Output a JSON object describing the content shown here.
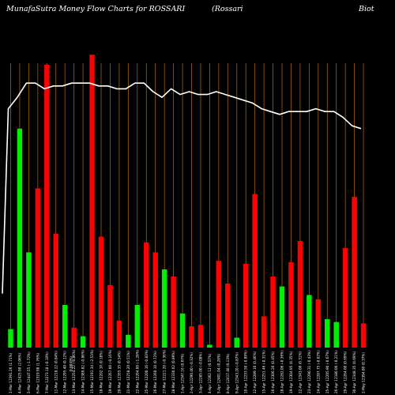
{
  "chart_data": {
    "type": "bar",
    "title": "MunafaSutra  Money Flow  Charts for ROSSARI",
    "subtitle_parts": [
      "(Rossari",
      "Biot"
    ],
    "colors": {
      "background": "#000000",
      "up": "#00ee00",
      "down": "#ff0000",
      "grid": "#a06010",
      "line": "#ffffff"
    },
    "grid": true,
    "ylim": [
      0,
      100
    ],
    "bars": [
      {
        "value": 6.5,
        "color": "up",
        "label": "1-Mar 12391.26 (1.71%)"
      },
      {
        "value": 77,
        "color": "up",
        "label": "4-Mar 12425.90 (2.06%)"
      },
      {
        "value": 33.5,
        "color": "up",
        "label": "5-Mar 12447.55 (-1.72%)"
      },
      {
        "value": 56,
        "color": "down",
        "label": "6-Mar 12319.98 (1.76%)"
      },
      {
        "value": 99.5,
        "color": "down",
        "label": "7-Mar 12273.18 (-0.10%)"
      },
      {
        "value": 40,
        "color": "down",
        "label": "11-Mar 12218.22 (0.84%)"
      },
      {
        "value": 15,
        "color": "up",
        "label": "12-Mar 12295.40 (0.12%)"
      },
      {
        "value": 7,
        "color": "down",
        "label": "13-Mar 12254.22 (-0.86%)"
      },
      {
        "value": 4,
        "color": "up",
        "label": "14-Mar 12389.82 (-0.86%)"
      },
      {
        "value": 103,
        "color": "down",
        "label": "15-Mar 12191.34 (-2.53%)"
      },
      {
        "value": 39,
        "color": "down",
        "label": "18-Mar 12202.10 (0.18%)"
      },
      {
        "value": 22,
        "color": "down",
        "label": "19-Mar 12267.00 (-0.16%)"
      },
      {
        "value": 9.5,
        "color": "down",
        "label": "20-Mar 12355.35 (0.54%)"
      },
      {
        "value": 4.5,
        "color": "up",
        "label": "21-Mar 12258.20 (0.51%)"
      },
      {
        "value": 15,
        "color": "up",
        "label": "22-Mar 12204.00 (-1.28%)"
      },
      {
        "value": 37,
        "color": "down",
        "label": "25-Mar 12200.16 (-0.83%)"
      },
      {
        "value": 33.5,
        "color": "down",
        "label": "26-Mar 12260.10 (0.72%)"
      },
      {
        "value": 27.5,
        "color": "up",
        "label": "27-Mar 12221.20 (-0.36%)"
      },
      {
        "value": 25,
        "color": "down",
        "label": "28-Mar 12330.62 (0.89%)"
      },
      {
        "value": 12,
        "color": "up",
        "label": "1-Apr 12347.16 (0.67%)"
      },
      {
        "value": 7.5,
        "color": "down",
        "label": "2-Apr 12290.40 (-0.32%)"
      },
      {
        "value": 8,
        "color": "down",
        "label": "3-Apr 12285.00 (-0.08%)"
      },
      {
        "value": 1,
        "color": "up",
        "label": "4-Apr 12362.12 (0.57%)"
      },
      {
        "value": 30.5,
        "color": "down",
        "label": "5-Apr 12401.04 (0.28%)"
      },
      {
        "value": 22.5,
        "color": "down",
        "label": "8-Apr 12417.40 (0.13%)"
      },
      {
        "value": 3.5,
        "color": "up",
        "label": "9-Apr 12343.20 (-0.87%)"
      },
      {
        "value": 29.5,
        "color": "down",
        "label": "10-Apr 12233.50 (-0.89%)"
      },
      {
        "value": 54,
        "color": "down",
        "label": "12-Apr 12289.10 (0.46%)"
      },
      {
        "value": 11,
        "color": "down",
        "label": "15-Apr 12251.46 (-0.31%)"
      },
      {
        "value": 25,
        "color": "down",
        "label": "16-Apr 12306.20 (0.45%)"
      },
      {
        "value": 21.5,
        "color": "up",
        "label": "18-Apr 12262.06 (-0.36%)"
      },
      {
        "value": 30,
        "color": "down",
        "label": "19-Apr 12304.95 (0.35%)"
      },
      {
        "value": 37.5,
        "color": "down",
        "label": "22-Apr 12343.00 (0.31%)"
      },
      {
        "value": 18.5,
        "color": "up",
        "label": "23-Apr 12290.31 (-0.43%)"
      },
      {
        "value": 17,
        "color": "down",
        "label": "24-Apr 12287.75 (-0.02%)"
      },
      {
        "value": 10,
        "color": "up",
        "label": "25-Apr 12205.90 (-0.67%)"
      },
      {
        "value": 9,
        "color": "up",
        "label": "26-Apr 12180.00 (-0.21%)"
      },
      {
        "value": 35,
        "color": "down",
        "label": "29-Apr 12264.00 (0.69%)"
      },
      {
        "value": 53,
        "color": "down",
        "label": "30-Apr 12348.35 (0.69%)"
      },
      {
        "value": 8.5,
        "color": "down",
        "label": "2-May 12394.00 (0.37%)"
      }
    ],
    "extra_tick_label": "0.00(0%)",
    "price_line": [
      19,
      84,
      88,
      93,
      93,
      91,
      92,
      92,
      93,
      93,
      93,
      92,
      92,
      91,
      91,
      93,
      93,
      90,
      88,
      91,
      89,
      90,
      89,
      89,
      90,
      89,
      88,
      87,
      86,
      84,
      83,
      82,
      83,
      83,
      83,
      84,
      83,
      83,
      81,
      78,
      77
    ]
  }
}
